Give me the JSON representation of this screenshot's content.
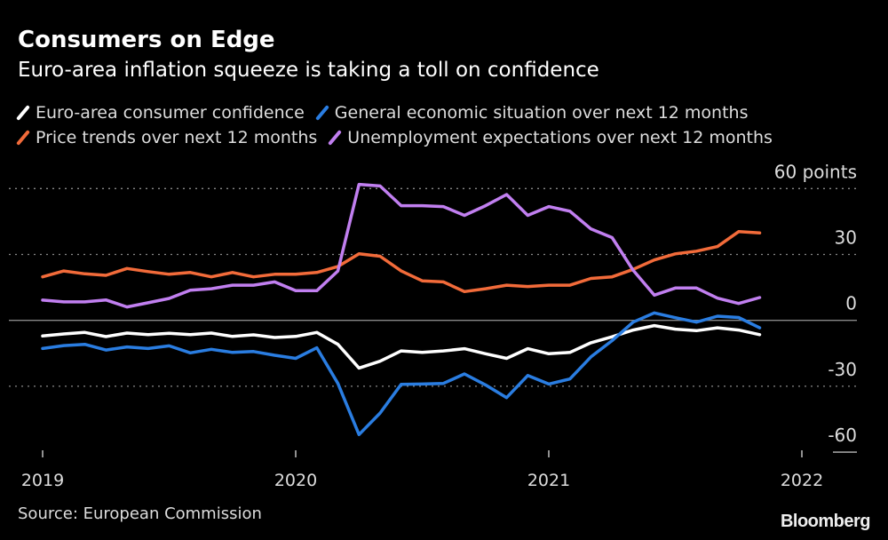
{
  "chart_data": {
    "type": "line",
    "title": "Consumers on Edge",
    "subtitle": "Euro-area inflation squeeze is taking a toll on confidence",
    "ylim": [
      -60,
      60
    ],
    "yticks": [
      60,
      30,
      0,
      -30,
      -60
    ],
    "ytick_labels": [
      "60 points",
      "30",
      "0",
      "-30",
      "-60"
    ],
    "xticks": [
      "2019",
      "2020",
      "2021",
      "2022"
    ],
    "x": [
      "2019-01",
      "2019-02",
      "2019-03",
      "2019-04",
      "2019-05",
      "2019-06",
      "2019-07",
      "2019-08",
      "2019-09",
      "2019-10",
      "2019-11",
      "2019-12",
      "2020-01",
      "2020-02",
      "2020-03",
      "2020-04",
      "2020-05",
      "2020-06",
      "2020-07",
      "2020-08",
      "2020-09",
      "2020-10",
      "2020-11",
      "2020-12",
      "2021-01",
      "2021-02",
      "2021-03",
      "2021-04",
      "2021-05",
      "2021-06",
      "2021-07",
      "2021-08",
      "2021-09",
      "2021-10",
      "2021-11"
    ],
    "grid": true,
    "legend_position": "top",
    "series": [
      {
        "name": "Euro-area consumer confidence",
        "color": "#ffffff",
        "values": [
          -7.1,
          -6.2,
          -5.5,
          -7.4,
          -5.8,
          -6.5,
          -5.9,
          -6.5,
          -5.8,
          -7.3,
          -6.6,
          -7.8,
          -7.3,
          -5.5,
          -10.9,
          -21.7,
          -18.6,
          -13.9,
          -14.6,
          -13.9,
          -12.9,
          -15.2,
          -17.3,
          -12.9,
          -15.2,
          -14.6,
          -10.2,
          -7.5,
          -4.4,
          -2.4,
          -4.0,
          -4.7,
          -3.4,
          -4.4,
          -6.5
        ]
      },
      {
        "name": "General economic situation over next 12 months",
        "color": "#2a7de1",
        "values": [
          -12.8,
          -11.5,
          -10.9,
          -13.5,
          -12.1,
          -12.8,
          -11.6,
          -14.8,
          -13.2,
          -14.6,
          -14.2,
          -15.9,
          -17.3,
          -12.5,
          -28.7,
          -52.0,
          -42.2,
          -29.1,
          -29.0,
          -28.7,
          -24.4,
          -29.4,
          -35.2,
          -25.1,
          -29.0,
          -26.7,
          -16.6,
          -9.2,
          -0.8,
          3.4,
          1.2,
          -0.8,
          1.9,
          1.3,
          -3.4
        ]
      },
      {
        "name": "Price trends over next 12 months",
        "color": "#f26b3a",
        "values": [
          19.8,
          22.5,
          21.2,
          20.5,
          23.6,
          22.2,
          21.0,
          21.8,
          19.8,
          21.8,
          19.8,
          21.0,
          21.0,
          21.8,
          24.5,
          30.3,
          29.2,
          22.5,
          18.0,
          17.5,
          13.1,
          14.4,
          16.0,
          15.4,
          16.0,
          16.0,
          19.1,
          19.8,
          23.2,
          27.5,
          30.3,
          31.5,
          33.6,
          40.4,
          39.8
        ]
      },
      {
        "name": "Unemployment expectations over next 12 months",
        "color": "#c17ff0",
        "values": [
          9.2,
          8.4,
          8.4,
          9.3,
          6.1,
          8.0,
          10.0,
          13.7,
          14.4,
          16.0,
          16.0,
          17.5,
          13.5,
          13.5,
          22.5,
          61.9,
          61.2,
          52.2,
          52.2,
          51.8,
          47.8,
          52.2,
          57.3,
          47.8,
          51.8,
          49.7,
          41.6,
          37.7,
          22.8,
          11.5,
          14.7,
          14.7,
          10.1,
          7.7,
          10.4
        ]
      }
    ]
  },
  "footer": {
    "source": "Source: European Commission",
    "brand": "Bloomberg"
  }
}
